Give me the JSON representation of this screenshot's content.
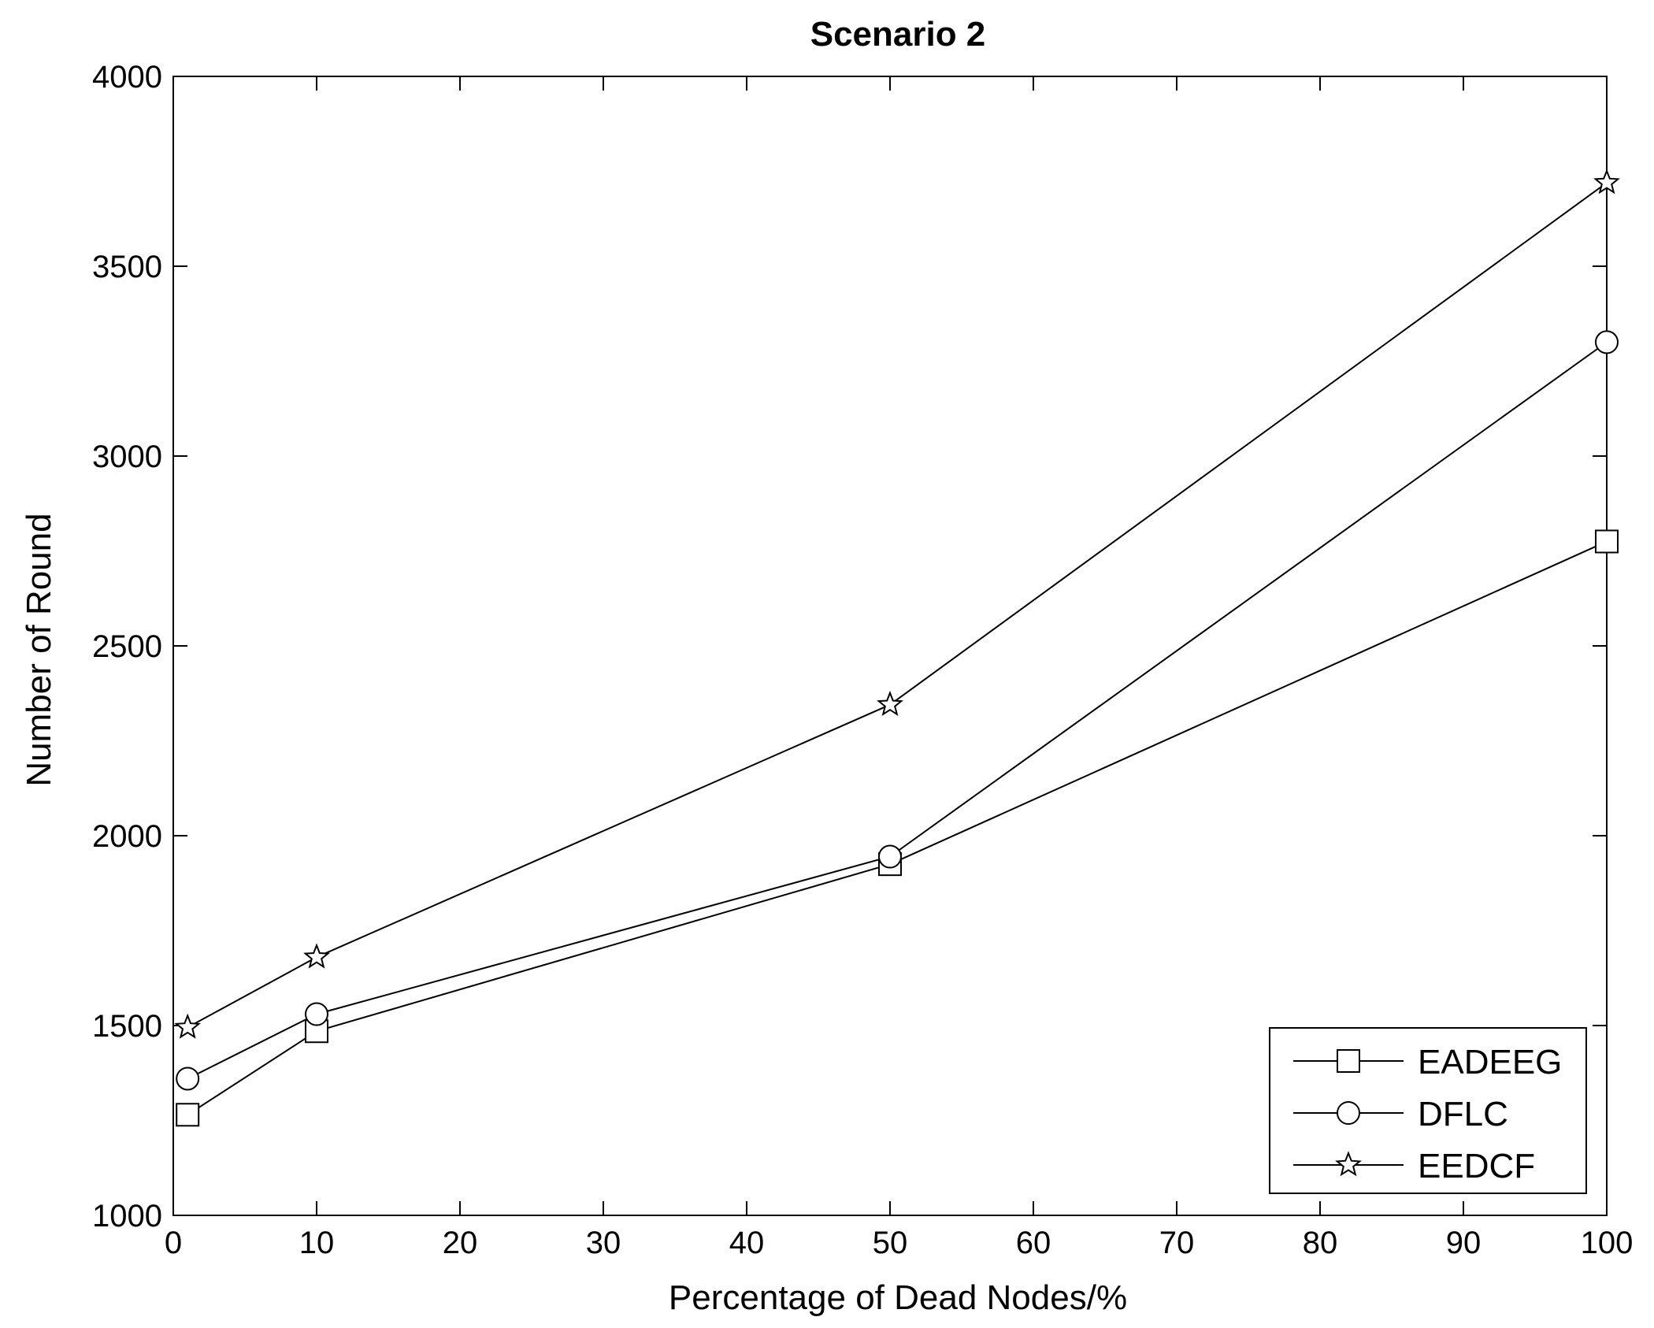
{
  "chart_data": {
    "type": "line",
    "title": "Scenario 2",
    "xlabel": "Percentage of Dead Nodes/%",
    "ylabel": "Number of Round",
    "xlim": [
      0,
      100
    ],
    "ylim": [
      1000,
      4000
    ],
    "xticks": [
      0,
      10,
      20,
      30,
      40,
      50,
      60,
      70,
      80,
      90,
      100
    ],
    "yticks": [
      1000,
      1500,
      2000,
      2500,
      3000,
      3500,
      4000
    ],
    "x": [
      1,
      10,
      50,
      100
    ],
    "series": [
      {
        "name": "EADEEG",
        "marker": "square",
        "values": [
          1265,
          1485,
          1925,
          2775
        ]
      },
      {
        "name": "DFLC",
        "marker": "circle",
        "values": [
          1360,
          1530,
          1945,
          3300
        ]
      },
      {
        "name": "EEDCF",
        "marker": "star",
        "values": [
          1495,
          1680,
          2345,
          3720
        ]
      }
    ],
    "legend": "bottom-right",
    "grid": false
  }
}
